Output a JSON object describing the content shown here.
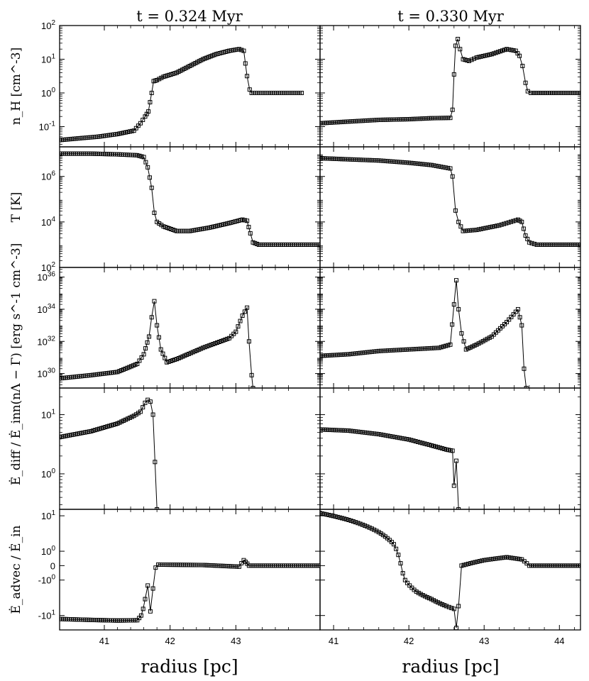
{
  "figure": {
    "column_titles": [
      "t = 0.324 Myr",
      "t = 0.330 Myr"
    ],
    "xlabel": "radius [pc]",
    "ylabels": [
      "n_H [cm^-3]",
      "T [K]",
      "n(nΛ − Γ) [erg s^-1 cm^-3]",
      "Ė_diff / Ė_in",
      "Ė_advec / Ė_in"
    ]
  },
  "chart_data": {
    "type": "line",
    "marker": "open-square",
    "color": "#000000",
    "columns": [
      {
        "title": "t = 0.324 Myr",
        "xlim": [
          40.32,
          44.28
        ],
        "xticks": [
          "41",
          "42",
          "43"
        ]
      },
      {
        "title": "t = 0.330 Myr",
        "xlim": [
          40.82,
          44.28
        ],
        "xticks": [
          "41",
          "42",
          "43",
          "44"
        ]
      }
    ],
    "rows": [
      {
        "ylabel": "n_H [cm^-3]",
        "scale": "log",
        "ylim_log10": [
          -1.6,
          2
        ],
        "yticks": [
          {
            "label_base": "10",
            "label_exp": "2",
            "log": 2
          },
          {
            "label_base": "10",
            "label_exp": "1",
            "log": 1
          },
          {
            "label_base": "10",
            "label_exp": "0",
            "log": 0
          },
          {
            "label_base": "10",
            "label_exp": "-1",
            "log": -1
          }
        ],
        "series": [
          {
            "column": 0,
            "points": [
              [
                40.32,
                -1.4
              ],
              [
                40.6,
                -1.35
              ],
              [
                40.9,
                -1.3
              ],
              [
                41.2,
                -1.22
              ],
              [
                41.45,
                -1.12
              ],
              [
                41.55,
                -0.9
              ],
              [
                41.62,
                -0.7
              ],
              [
                41.67,
                -0.55
              ],
              [
                41.72,
                0.0
              ],
              [
                41.75,
                0.35
              ],
              [
                41.8,
                0.38
              ],
              [
                41.9,
                0.48
              ],
              [
                42.1,
                0.6
              ],
              [
                42.3,
                0.8
              ],
              [
                42.5,
                1.0
              ],
              [
                42.7,
                1.15
              ],
              [
                42.9,
                1.25
              ],
              [
                43.05,
                1.3
              ],
              [
                43.12,
                1.25
              ],
              [
                43.17,
                0.5
              ],
              [
                43.21,
                0.1
              ],
              [
                43.24,
                0.0
              ],
              [
                43.5,
                0.0
              ],
              [
                44.0,
                0.0
              ]
            ]
          },
          {
            "column": 1,
            "points": [
              [
                40.82,
                -0.9
              ],
              [
                41.2,
                -0.85
              ],
              [
                41.6,
                -0.8
              ],
              [
                42.0,
                -0.78
              ],
              [
                42.3,
                -0.75
              ],
              [
                42.55,
                -0.74
              ],
              [
                42.58,
                -0.5
              ],
              [
                42.6,
                0.55
              ],
              [
                42.62,
                1.4
              ],
              [
                42.65,
                1.6
              ],
              [
                42.68,
                1.3
              ],
              [
                42.72,
                1.0
              ],
              [
                42.8,
                0.95
              ],
              [
                42.9,
                1.05
              ],
              [
                43.1,
                1.15
              ],
              [
                43.3,
                1.3
              ],
              [
                43.42,
                1.25
              ],
              [
                43.47,
                1.1
              ],
              [
                43.51,
                0.8
              ],
              [
                43.55,
                0.3
              ],
              [
                43.58,
                0.05
              ],
              [
                43.62,
                0.0
              ],
              [
                44.0,
                0.0
              ],
              [
                44.28,
                0.0
              ]
            ]
          }
        ]
      },
      {
        "ylabel": "T [K]",
        "scale": "log",
        "ylim_log10": [
          2,
          7.3
        ],
        "yticks": [
          {
            "label_base": "10",
            "label_exp": "6",
            "log": 6
          },
          {
            "label_base": "10",
            "label_exp": "4",
            "log": 4
          },
          {
            "label_base": "10",
            "label_exp": "2",
            "log": 2
          }
        ],
        "series": [
          {
            "column": 0,
            "points": [
              [
                40.32,
                7.0
              ],
              [
                40.8,
                7.0
              ],
              [
                41.2,
                6.97
              ],
              [
                41.5,
                6.93
              ],
              [
                41.6,
                6.85
              ],
              [
                41.66,
                6.4
              ],
              [
                41.72,
                5.5
              ],
              [
                41.76,
                4.4
              ],
              [
                41.8,
                4.0
              ],
              [
                41.9,
                3.8
              ],
              [
                42.1,
                3.6
              ],
              [
                42.3,
                3.6
              ],
              [
                42.6,
                3.75
              ],
              [
                42.9,
                3.95
              ],
              [
                43.1,
                4.1
              ],
              [
                43.17,
                4.05
              ],
              [
                43.22,
                3.5
              ],
              [
                43.26,
                3.1
              ],
              [
                43.35,
                3.0
              ],
              [
                44.28,
                3.0
              ]
            ]
          },
          {
            "column": 1,
            "points": [
              [
                40.82,
                6.8
              ],
              [
                41.2,
                6.75
              ],
              [
                41.6,
                6.7
              ],
              [
                42.0,
                6.6
              ],
              [
                42.3,
                6.5
              ],
              [
                42.55,
                6.35
              ],
              [
                42.58,
                6.0
              ],
              [
                42.62,
                4.5
              ],
              [
                42.66,
                4.0
              ],
              [
                42.72,
                3.6
              ],
              [
                42.9,
                3.65
              ],
              [
                43.2,
                3.85
              ],
              [
                43.45,
                4.1
              ],
              [
                43.5,
                4.0
              ],
              [
                43.55,
                3.4
              ],
              [
                43.6,
                3.1
              ],
              [
                43.7,
                3.0
              ],
              [
                44.28,
                3.0
              ]
            ]
          }
        ]
      },
      {
        "ylabel": "n(nΛ − Γ) [erg s^-1 cm^-3]",
        "scale": "log",
        "ylim_log10": [
          29.1,
          36.6
        ],
        "yticks": [
          {
            "label_base": "10",
            "label_exp": "36",
            "log": 36
          },
          {
            "label_base": "10",
            "label_exp": "34",
            "log": 34
          },
          {
            "label_base": "10",
            "label_exp": "32",
            "log": 32
          },
          {
            "label_base": "10",
            "label_exp": "30",
            "log": 30
          }
        ],
        "series": [
          {
            "column": 0,
            "points": [
              [
                40.32,
                29.7
              ],
              [
                40.8,
                29.9
              ],
              [
                41.2,
                30.1
              ],
              [
                41.5,
                30.6
              ],
              [
                41.6,
                31.2
              ],
              [
                41.68,
                32.3
              ],
              [
                41.72,
                33.5
              ],
              [
                41.76,
                34.5
              ],
              [
                41.8,
                33.0
              ],
              [
                41.86,
                31.5
              ],
              [
                41.95,
                30.7
              ],
              [
                42.1,
                30.9
              ],
              [
                42.5,
                31.6
              ],
              [
                42.9,
                32.2
              ],
              [
                43.0,
                32.6
              ],
              [
                43.1,
                33.6
              ],
              [
                43.17,
                34.1
              ],
              [
                43.2,
                32.0
              ],
              [
                43.24,
                29.9
              ],
              [
                43.26,
                29.1
              ]
            ]
          },
          {
            "column": 1,
            "points": [
              [
                40.82,
                31.1
              ],
              [
                41.2,
                31.2
              ],
              [
                41.6,
                31.4
              ],
              [
                42.0,
                31.5
              ],
              [
                42.4,
                31.6
              ],
              [
                42.55,
                31.8
              ],
              [
                42.6,
                34.3
              ],
              [
                42.63,
                35.8
              ],
              [
                42.66,
                34.0
              ],
              [
                42.7,
                32.5
              ],
              [
                42.76,
                31.5
              ],
              [
                42.9,
                31.8
              ],
              [
                43.1,
                32.3
              ],
              [
                43.3,
                33.2
              ],
              [
                43.45,
                34.0
              ],
              [
                43.5,
                33.0
              ],
              [
                43.53,
                30.3
              ],
              [
                43.56,
                29.1
              ]
            ]
          }
        ]
      },
      {
        "ylabel": "Ė_diff / Ė_in",
        "scale": "log",
        "ylim_log10": [
          -0.6,
          1.45
        ],
        "yticks": [
          {
            "label_base": "10",
            "label_exp": "1",
            "log": 1
          },
          {
            "label_base": "10",
            "label_exp": "0",
            "log": 0
          }
        ],
        "series": [
          {
            "column": 0,
            "points": [
              [
                40.32,
                0.62
              ],
              [
                40.8,
                0.72
              ],
              [
                41.2,
                0.85
              ],
              [
                41.45,
                0.98
              ],
              [
                41.55,
                1.05
              ],
              [
                41.62,
                1.2
              ],
              [
                41.66,
                1.25
              ],
              [
                41.7,
                1.22
              ],
              [
                41.74,
                1.0
              ],
              [
                41.77,
                0.2
              ],
              [
                41.8,
                -0.6
              ]
            ]
          },
          {
            "column": 1,
            "points": [
              [
                40.82,
                0.75
              ],
              [
                41.2,
                0.73
              ],
              [
                41.6,
                0.67
              ],
              [
                42.0,
                0.58
              ],
              [
                42.3,
                0.48
              ],
              [
                42.5,
                0.41
              ],
              [
                42.58,
                0.39
              ],
              [
                42.6,
                -0.2
              ],
              [
                42.63,
                0.22
              ],
              [
                42.66,
                -0.6
              ]
            ]
          }
        ]
      },
      {
        "ylabel": "Ė_advec / Ė_in",
        "scale": "symlog",
        "linthresh": 1,
        "ylim": [
          -21,
          14
        ],
        "yticks": [
          {
            "label_base": "10",
            "label_exp": "1",
            "value": 10
          },
          {
            "label_base": "10",
            "label_exp": "0",
            "value": 1
          },
          {
            "label": "0",
            "value": 0
          },
          {
            "label_base": "-10",
            "label_exp": "0",
            "value": -1
          },
          {
            "label_base": "-10",
            "label_exp": "1",
            "value": -10
          }
        ],
        "series": [
          {
            "column": 0,
            "points": [
              [
                40.32,
                -12
              ],
              [
                40.8,
                -12.6
              ],
              [
                41.2,
                -13
              ],
              [
                41.5,
                -12.8
              ],
              [
                41.56,
                -10
              ],
              [
                41.62,
                -4
              ],
              [
                41.66,
                -1.6
              ],
              [
                41.7,
                -8
              ],
              [
                41.74,
                -2
              ],
              [
                41.78,
                -0.1
              ],
              [
                41.82,
                0.05
              ],
              [
                42.5,
                0.03
              ],
              [
                43.05,
                -0.05
              ],
              [
                43.12,
                0.3
              ],
              [
                43.2,
                0.0
              ],
              [
                44.28,
                0.0
              ]
            ]
          },
          {
            "column": 1,
            "points": [
              [
                40.82,
                11.5
              ],
              [
                41.2,
                8
              ],
              [
                41.6,
                4
              ],
              [
                41.8,
                1.8
              ],
              [
                41.95,
                -1
              ],
              [
                42.1,
                -2.5
              ],
              [
                42.3,
                -4
              ],
              [
                42.5,
                -6
              ],
              [
                42.6,
                -7
              ],
              [
                42.63,
                -19
              ],
              [
                42.66,
                -6
              ],
              [
                42.7,
                0.0
              ],
              [
                43.0,
                0.3
              ],
              [
                43.3,
                0.5
              ],
              [
                43.5,
                0.35
              ],
              [
                43.6,
                0.0
              ],
              [
                44.28,
                0.0
              ]
            ]
          }
        ]
      }
    ]
  }
}
